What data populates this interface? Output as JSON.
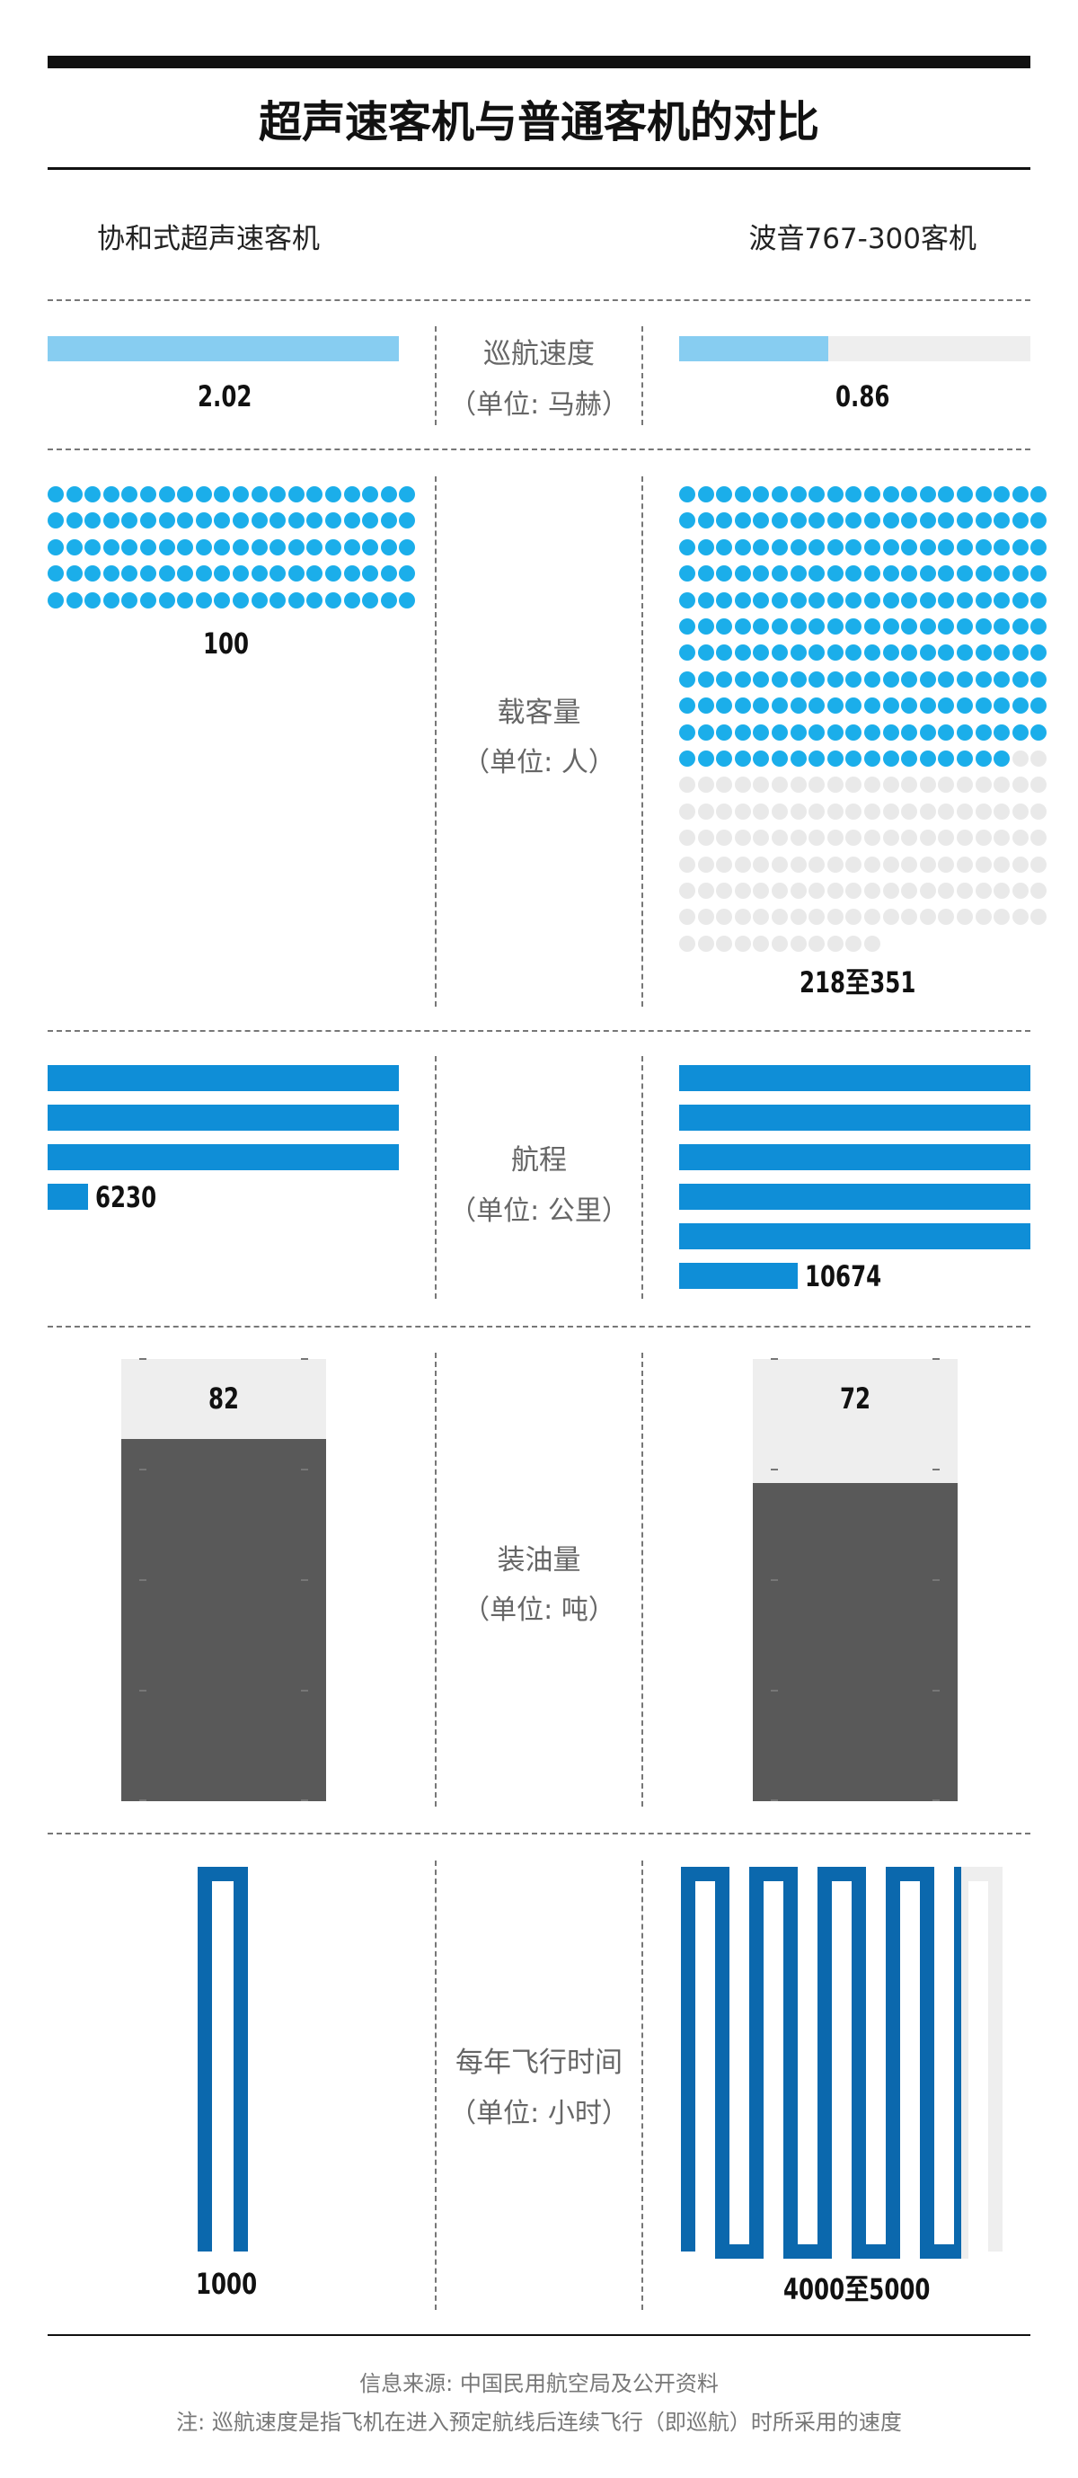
{
  "title": "超声速客机与普通客机的对比",
  "columns": {
    "left": "协和式超声速客机",
    "right": "波音767-300客机"
  },
  "colors": {
    "speed_fill": "#87cdf1",
    "range_bar": "#0f8ed7",
    "dot_filled": "#1baeea",
    "dot_empty": "#e9e9e9",
    "fuel_filled": "#595959",
    "fuel_empty": "#eeeeee",
    "flight_line": "#0b68ad",
    "flight_line_empty": "#eeeeee"
  },
  "chart_data": {
    "type": "table",
    "title": "超声速客机与普通客机的对比",
    "categories": [
      {
        "name": "巡航速度",
        "unit": "（单位: 马赫）",
        "left_label": "2.02",
        "right_label": "0.86",
        "left_value": 2.02,
        "right_value": 0.86,
        "full_scale": 2.02
      },
      {
        "name": "载客量",
        "unit": "（单位: 人）",
        "left_label": "100",
        "right_label": "218至351",
        "left_value": 100,
        "right_value_min": 218,
        "right_value_max": 351
      },
      {
        "name": "航程",
        "unit": "（单位: 公里）",
        "left_label": "6230",
        "right_label": "10674",
        "left_value": 6230,
        "right_value": 10674
      },
      {
        "name": "装油量",
        "unit": "（单位: 吨）",
        "left_label": "82",
        "right_label": "72",
        "left_value": 82,
        "right_value": 72
      },
      {
        "name": "每年飞行时间",
        "unit": "（单位: 小时）",
        "left_label": "1000",
        "right_label": "4000至5000",
        "left_value": 1000,
        "right_value_min": 4000,
        "right_value_max": 5000
      }
    ]
  },
  "footer": {
    "source": "信息来源: 中国民用航空局及公开资料",
    "note": "注: 巡航速度是指飞机在进入预定航线后连续飞行（即巡航）时所采用的速度"
  }
}
